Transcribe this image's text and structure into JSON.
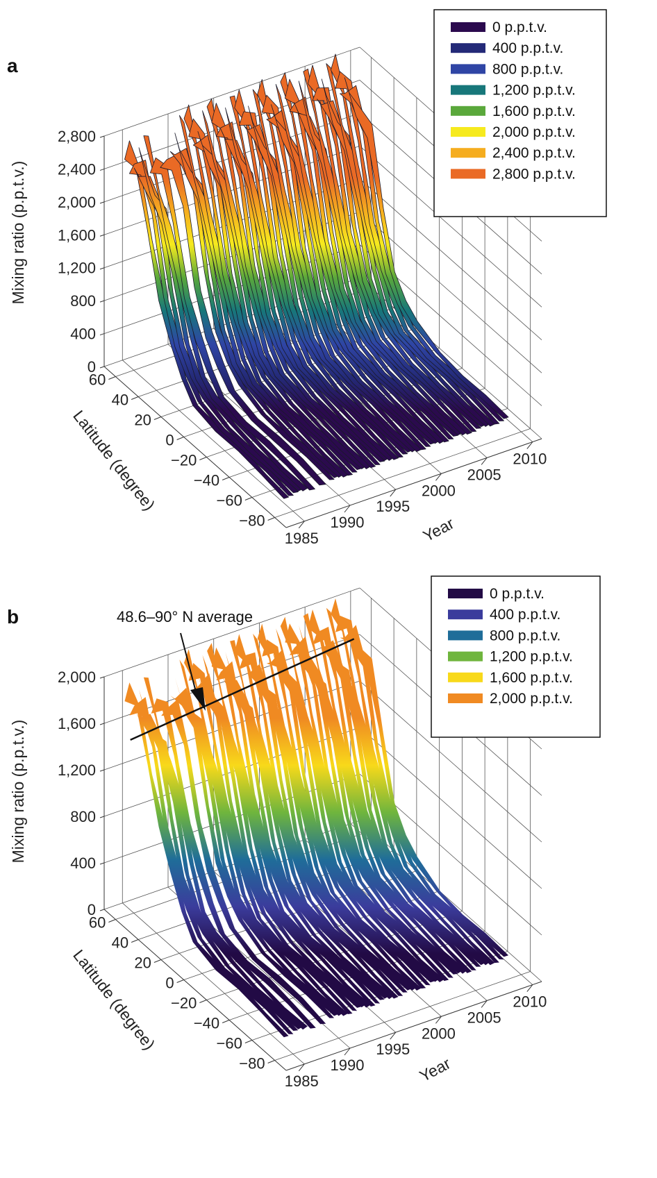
{
  "chart_data": [
    {
      "panel": "a",
      "type": "area",
      "xlabel": "Year",
      "ylabel": "Latitude  (degree)",
      "zlabel": "Mixing ratio (p.p.t.v.)",
      "x_ticks": [
        "1985",
        "1990",
        "1995",
        "2000",
        "2005",
        "2010"
      ],
      "y_ticks": [
        "60",
        "40",
        "20",
        "0",
        "−20",
        "−40",
        "−60",
        "−80"
      ],
      "z_ticks": [
        "0",
        "400",
        "800",
        "1,200",
        "1,600",
        "2,000",
        "2,400",
        "2,800"
      ],
      "xlim": [
        1983,
        2011
      ],
      "ylim": [
        -90,
        70
      ],
      "zlim": [
        0,
        2800
      ],
      "legend": [
        {
          "label": "0 p.p.t.v.",
          "color": "#2b0a4e"
        },
        {
          "label": "400 p.p.t.v.",
          "color": "#242a78"
        },
        {
          "label": "800 p.p.t.v.",
          "color": "#2f45a5"
        },
        {
          "label": "1,200 p.p.t.v.",
          "color": "#17777a"
        },
        {
          "label": "1,600 p.p.t.v.",
          "color": "#5aa83b"
        },
        {
          "label": "2,000 p.p.t.v.",
          "color": "#f6ea1e"
        },
        {
          "label": "2,400 p.p.t.v.",
          "color": "#f5ad1f"
        },
        {
          "label": "2,800 p.p.t.v.",
          "color": "#ea6a25"
        }
      ],
      "legend_position": "top-right",
      "surface": {
        "style": "mesh",
        "ribbons": [
          {
            "x_start": 1984.0,
            "x_end": 1986.6,
            "peak": 2600
          },
          {
            "x_start": 1986.8,
            "x_end": 1987.4,
            "peak": 2450
          },
          {
            "x_start": 1987.9,
            "x_end": 1988.6,
            "peak": 2550
          },
          {
            "x_start": 1989.0,
            "x_end": 2008.6,
            "peak": 2700
          }
        ],
        "latitude_profile": [
          {
            "lat": 60,
            "frac": 1.0
          },
          {
            "lat": 50,
            "frac": 0.93
          },
          {
            "lat": 40,
            "frac": 0.78
          },
          {
            "lat": 30,
            "frac": 0.52
          },
          {
            "lat": 20,
            "frac": 0.32
          },
          {
            "lat": 10,
            "frac": 0.2
          },
          {
            "lat": 0,
            "frac": 0.14
          },
          {
            "lat": -20,
            "frac": 0.11
          },
          {
            "lat": -40,
            "frac": 0.1
          },
          {
            "lat": -60,
            "frac": 0.09
          },
          {
            "lat": -80,
            "frac": 0.08
          }
        ]
      }
    },
    {
      "panel": "b",
      "type": "area",
      "xlabel": "Year",
      "ylabel": "Latitude  (degree)",
      "zlabel": "Mixing ratio (p.p.t.v.)",
      "x_ticks": [
        "1985",
        "1990",
        "1995",
        "2000",
        "2005",
        "2010"
      ],
      "y_ticks": [
        "60",
        "40",
        "20",
        "0",
        "−20",
        "−40",
        "−60",
        "−80"
      ],
      "z_ticks": [
        "0",
        "400",
        "800",
        "1,200",
        "1,600",
        "2,000"
      ],
      "xlim": [
        1983,
        2011
      ],
      "ylim": [
        -90,
        70
      ],
      "zlim": [
        0,
        2000
      ],
      "legend": [
        {
          "label": "0 p.p.t.v.",
          "color": "#220a45"
        },
        {
          "label": "400 p.p.t.v.",
          "color": "#3b3c9c"
        },
        {
          "label": "800 p.p.t.v.",
          "color": "#1f6d99"
        },
        {
          "label": "1,200 p.p.t.v.",
          "color": "#6fb53d"
        },
        {
          "label": "1,600 p.p.t.v.",
          "color": "#f8d91a"
        },
        {
          "label": "2,000 p.p.t.v.",
          "color": "#f08a22"
        }
      ],
      "legend_position": "top-right",
      "annotation": "48.6–90° N average",
      "average_line": {
        "x_start": 1984.0,
        "x_end": 2008.5,
        "z_start": 1560,
        "z_end": 1760
      },
      "surface": {
        "style": "smooth",
        "ribbons": [
          {
            "x_start": 1984.0,
            "x_end": 1986.6,
            "peak": 1850
          },
          {
            "x_start": 1986.9,
            "x_end": 1987.5,
            "peak": 1750
          },
          {
            "x_start": 1988.0,
            "x_end": 1988.6,
            "peak": 1750
          },
          {
            "x_start": 1989.0,
            "x_end": 2008.6,
            "peak": 1900
          }
        ],
        "latitude_profile": [
          {
            "lat": 60,
            "frac": 1.0
          },
          {
            "lat": 50,
            "frac": 0.95
          },
          {
            "lat": 40,
            "frac": 0.82
          },
          {
            "lat": 30,
            "frac": 0.6
          },
          {
            "lat": 20,
            "frac": 0.38
          },
          {
            "lat": 10,
            "frac": 0.24
          },
          {
            "lat": 0,
            "frac": 0.17
          },
          {
            "lat": -20,
            "frac": 0.13
          },
          {
            "lat": -40,
            "frac": 0.12
          },
          {
            "lat": -60,
            "frac": 0.11
          },
          {
            "lat": -80,
            "frac": 0.1
          }
        ]
      }
    }
  ],
  "panel_labels": [
    "a",
    "b"
  ]
}
